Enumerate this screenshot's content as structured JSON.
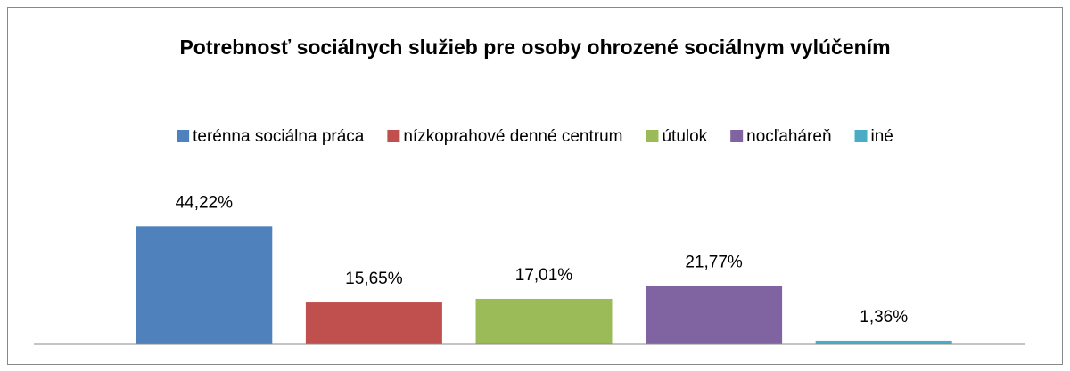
{
  "chart_data": {
    "type": "bar",
    "title": "Potrebnosť sociálnych služieb pre osoby ohrozené  sociálnym vylúčením",
    "categories": [
      null
    ],
    "series": [
      {
        "name": "terénna sociálna práca",
        "color": "#4f81bd",
        "values": [
          44.22
        ],
        "value_labels": [
          "44,22%"
        ]
      },
      {
        "name": "nízkoprahové denné centrum",
        "color": "#c0504d",
        "values": [
          15.65
        ],
        "value_labels": [
          "15,65%"
        ]
      },
      {
        "name": "útulok",
        "color": "#9bbb59",
        "values": [
          17.01
        ],
        "value_labels": [
          "17,01%"
        ]
      },
      {
        "name": "nocľaháreň",
        "color": "#8064a2",
        "values": [
          21.77
        ],
        "value_labels": [
          "21,77%"
        ]
      },
      {
        "name": "iné",
        "color": "#4bacc6",
        "values": [
          1.36
        ],
        "value_labels": [
          "1,36%"
        ]
      }
    ],
    "ylim": [
      0,
      50
    ],
    "legend": "top"
  }
}
